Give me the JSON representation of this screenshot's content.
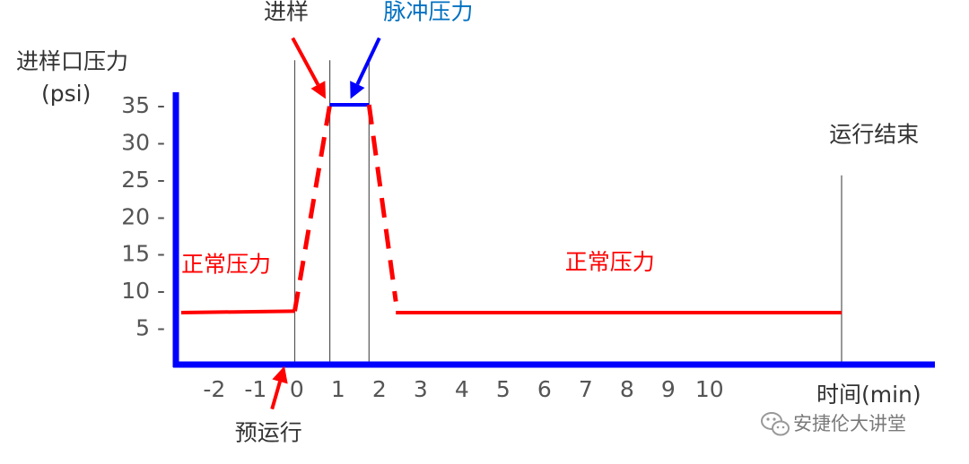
{
  "chart_data": {
    "type": "line",
    "ylabel": "进样口压力",
    "ylabel_unit": "(psi)",
    "xlabel": "时间(min)",
    "ylim": [
      0,
      38
    ],
    "xlim": [
      -2.8,
      16.2
    ],
    "y_ticks": [
      {
        "value": 5,
        "label": "5 -"
      },
      {
        "value": 10,
        "label": "10 -"
      },
      {
        "value": 15,
        "label": "15 -"
      },
      {
        "value": 20,
        "label": "20 -"
      },
      {
        "value": 25,
        "label": "25 -"
      },
      {
        "value": 30,
        "label": "30 -"
      },
      {
        "value": 35,
        "label": "35 -"
      }
    ],
    "x_ticks": [
      {
        "value": -2,
        "label": "-2"
      },
      {
        "value": -1,
        "label": "-1"
      },
      {
        "value": 0,
        "label": "0"
      },
      {
        "value": 1,
        "label": "1"
      },
      {
        "value": 2,
        "label": "2"
      },
      {
        "value": 3,
        "label": "3"
      },
      {
        "value": 4,
        "label": "4"
      },
      {
        "value": 5,
        "label": "5"
      },
      {
        "value": 6,
        "label": "6"
      },
      {
        "value": 7,
        "label": "7"
      },
      {
        "value": 8,
        "label": "8"
      },
      {
        "value": 9,
        "label": "9"
      },
      {
        "value": 10,
        "label": "10"
      }
    ],
    "series": [
      {
        "style": "solid",
        "color": "#ff0000",
        "x": [
          -2.8,
          -0.05
        ],
        "y": [
          7,
          7.2
        ]
      },
      {
        "style": "dashed",
        "color": "#ff0000",
        "x": [
          -0.05,
          0.8
        ],
        "y": [
          7.2,
          35
        ]
      },
      {
        "style": "solid",
        "color": "#0000ff",
        "x": [
          0.8,
          1.75
        ],
        "y": [
          35,
          35
        ]
      },
      {
        "style": "dashed",
        "color": "#ff0000",
        "x": [
          1.75,
          2.4
        ],
        "y": [
          35,
          8.5
        ]
      },
      {
        "style": "solid",
        "color": "#ff0000",
        "x": [
          2.4,
          13.2
        ],
        "y": [
          7,
          7
        ]
      }
    ],
    "vertical_markers": [
      {
        "x": -0.05,
        "top_y": 41
      },
      {
        "x": 0.8,
        "top_y": 41
      },
      {
        "x": 1.75,
        "top_y": 41
      },
      {
        "x": 13.2,
        "top_y": 25.5
      }
    ],
    "annotations": [
      {
        "text": "正常压力",
        "color": "#ff0000",
        "x": -2.8,
        "y": 12.5
      },
      {
        "text": "正常压力",
        "color": "#ff0000",
        "x": 6.5,
        "y": 12.8
      },
      {
        "text": "进样",
        "color": "#333333",
        "x": -0.8,
        "y": 46.5
      },
      {
        "text": "脉冲压力",
        "color": "#0070c0",
        "x": 2.1,
        "y": 46.5
      },
      {
        "text": "运行结束",
        "color": "#333333",
        "x": 12.9,
        "y": 30
      },
      {
        "text": "预运行",
        "color": "#333333",
        "x": -1.5,
        "y": -10.2
      }
    ],
    "arrows": [
      {
        "color": "#ff0000",
        "from": [
          -0.1,
          44
        ],
        "to": [
          0.7,
          35.8
        ]
      },
      {
        "color": "#0000ff",
        "from": [
          2.0,
          44
        ],
        "to": [
          1.3,
          35.8
        ]
      },
      {
        "color": "#ff0000",
        "from": [
          -0.6,
          -6
        ],
        "to": [
          -0.3,
          -0.2
        ]
      }
    ],
    "colors": {
      "axis": "#0000ff",
      "normal": "#ff0000",
      "pulse": "#0000ff",
      "marker": "#555555",
      "tick_text": "#555555"
    }
  },
  "watermark": {
    "text": "安捷伦大讲堂",
    "icon": "wechat-icon"
  }
}
